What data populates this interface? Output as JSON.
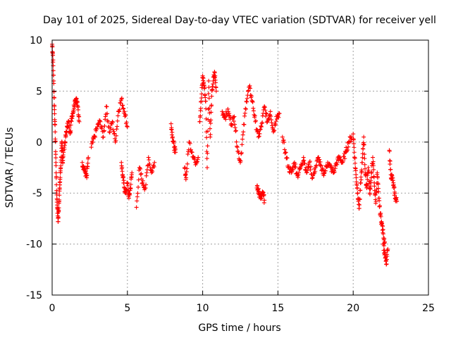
{
  "chart_data": {
    "type": "scatter",
    "title": "Day 101 of 2025, Sidereal Day-to-day VTEC variation (SDTVAR) for receiver yell",
    "xlabel": "GPS time / hours",
    "ylabel": "SDTVAR / TECUs",
    "xlim": [
      0,
      25
    ],
    "ylim": [
      -15,
      10
    ],
    "xticks": [
      0,
      5,
      10,
      15,
      20,
      25
    ],
    "yticks": [
      -15,
      -10,
      -5,
      0,
      5,
      10
    ],
    "grid": true,
    "marker": "+",
    "color": "#ff0000",
    "segments": [
      {
        "name": "seg1",
        "x": [
          0.0,
          0.05,
          0.1,
          0.15,
          0.2,
          0.25,
          0.3,
          0.35,
          0.4,
          0.45,
          0.5,
          0.55,
          0.6,
          0.65,
          0.7,
          0.75
        ],
        "y": [
          9.6,
          8.5,
          6.0,
          3.5,
          1.0,
          -2.0,
          -5.0,
          -6.5,
          -7.8,
          -6.0,
          -4.5,
          -3.0,
          -1.5,
          0.0,
          -2.0,
          -1.0
        ]
      },
      {
        "name": "seg2",
        "x": [
          0.8,
          0.9,
          1.0,
          1.1,
          1.2,
          1.3,
          1.4,
          1.5,
          1.6,
          1.7,
          1.8
        ],
        "y": [
          -0.5,
          0.5,
          1.5,
          2.0,
          1.0,
          2.5,
          3.0,
          4.0,
          4.3,
          3.5,
          2.0
        ]
      },
      {
        "name": "seg3",
        "x": [
          2.0,
          2.1,
          2.2,
          2.3,
          2.4
        ],
        "y": [
          -2.0,
          -2.5,
          -3.0,
          -3.5,
          -1.5
        ]
      },
      {
        "name": "seg4",
        "x": [
          2.6,
          2.8,
          3.0,
          3.2,
          3.4,
          3.6,
          3.8,
          4.0,
          4.2,
          4.4,
          4.6,
          4.8,
          5.0
        ],
        "y": [
          -0.5,
          0.5,
          1.5,
          2.0,
          0.5,
          3.5,
          1.0,
          2.0,
          0.0,
          3.0,
          4.2,
          3.0,
          1.5
        ]
      },
      {
        "name": "seg5",
        "x": [
          4.6,
          4.7,
          4.8,
          4.9,
          5.0,
          5.1,
          5.2,
          5.3
        ],
        "y": [
          -2.0,
          -3.5,
          -4.5,
          -5.0,
          -4.0,
          -5.5,
          -4.5,
          -3.0
        ]
      },
      {
        "name": "seg6",
        "x": [
          5.6,
          5.8,
          6.0,
          6.2,
          6.4,
          6.6,
          6.8
        ],
        "y": [
          -6.4,
          -2.5,
          -4.0,
          -4.5,
          -1.5,
          -3.0,
          -2.0
        ]
      },
      {
        "name": "seg7",
        "x": [
          7.9,
          8.0,
          8.1,
          8.2
        ],
        "y": [
          1.8,
          0.5,
          -0.5,
          -1.0
        ]
      },
      {
        "name": "seg8",
        "x": [
          8.8,
          8.9,
          9.1,
          9.3,
          9.5,
          9.7
        ],
        "y": [
          -2.5,
          -3.5,
          0.0,
          -1.0,
          -2.0,
          -1.5
        ]
      },
      {
        "name": "seg9",
        "x": [
          9.8,
          9.9,
          10.0,
          10.1,
          10.2,
          10.3,
          10.4,
          10.5,
          10.6,
          10.7,
          10.8,
          10.9
        ],
        "y": [
          2.0,
          4.0,
          6.5,
          5.5,
          4.0,
          -2.5,
          6.0,
          0.5,
          4.5,
          6.0,
          6.8,
          5.0
        ]
      },
      {
        "name": "seg10",
        "x": [
          11.3,
          11.5,
          11.7,
          11.9,
          12.1,
          12.3,
          12.5,
          12.7,
          12.9,
          13.1,
          13.3,
          13.5,
          13.7,
          13.9,
          14.1,
          14.3,
          14.5,
          14.7,
          14.9,
          15.1
        ],
        "y": [
          3.0,
          2.5,
          3.0,
          1.8,
          2.5,
          -0.5,
          -2.0,
          1.0,
          4.0,
          5.4,
          4.0,
          2.0,
          0.5,
          1.5,
          3.5,
          2.0,
          3.0,
          1.0,
          2.5,
          2.8
        ]
      },
      {
        "name": "seg11",
        "x": [
          13.6,
          13.7,
          13.8,
          13.9,
          14.0,
          14.1
        ],
        "y": [
          -4.5,
          -4.8,
          -5.2,
          -5.5,
          -5.0,
          -5.7
        ]
      },
      {
        "name": "seg12",
        "x": [
          15.3,
          15.5,
          15.7,
          15.9,
          16.1,
          16.3,
          16.5,
          16.7,
          16.9,
          17.1,
          17.3,
          17.5,
          17.7,
          17.9,
          18.1,
          18.3,
          18.5,
          18.7,
          18.9,
          19.1,
          19.3,
          19.5,
          19.7,
          19.9
        ],
        "y": [
          0.5,
          -1.0,
          -2.5,
          -3.0,
          -2.0,
          -3.3,
          -2.5,
          -1.5,
          -3.0,
          -2.0,
          -3.5,
          -2.5,
          -1.5,
          -2.8,
          -3.0,
          -2.0,
          -2.5,
          -3.0,
          -2.0,
          -1.5,
          -2.0,
          -1.0,
          0.0,
          0.5
        ]
      },
      {
        "name": "seg13",
        "x": [
          20.0,
          20.1,
          20.2,
          20.3,
          20.4,
          20.5,
          20.6,
          20.7,
          20.8,
          20.9,
          21.0,
          21.1,
          21.2,
          21.3,
          21.4,
          21.5,
          21.6,
          21.7,
          21.8,
          21.9,
          22.0,
          22.1
        ],
        "y": [
          0.8,
          -1.5,
          -3.5,
          -5.0,
          -6.5,
          -4.0,
          -2.0,
          0.5,
          -3.0,
          -4.5,
          -2.5,
          -5.0,
          -3.5,
          -1.5,
          -4.0,
          -6.0,
          -3.0,
          -5.5,
          -7.0,
          -8.0,
          -9.0,
          -9.8
        ]
      },
      {
        "name": "seg14",
        "x": [
          22.0,
          22.1,
          22.2,
          22.3
        ],
        "y": [
          -10.0,
          -11.0,
          -12.0,
          -10.5
        ]
      },
      {
        "name": "seg15",
        "x": [
          22.4,
          22.5,
          22.6,
          22.7,
          22.8,
          22.9
        ],
        "y": [
          -0.8,
          -3.2,
          -3.5,
          -4.5,
          -5.5,
          -5.8
        ]
      }
    ]
  }
}
